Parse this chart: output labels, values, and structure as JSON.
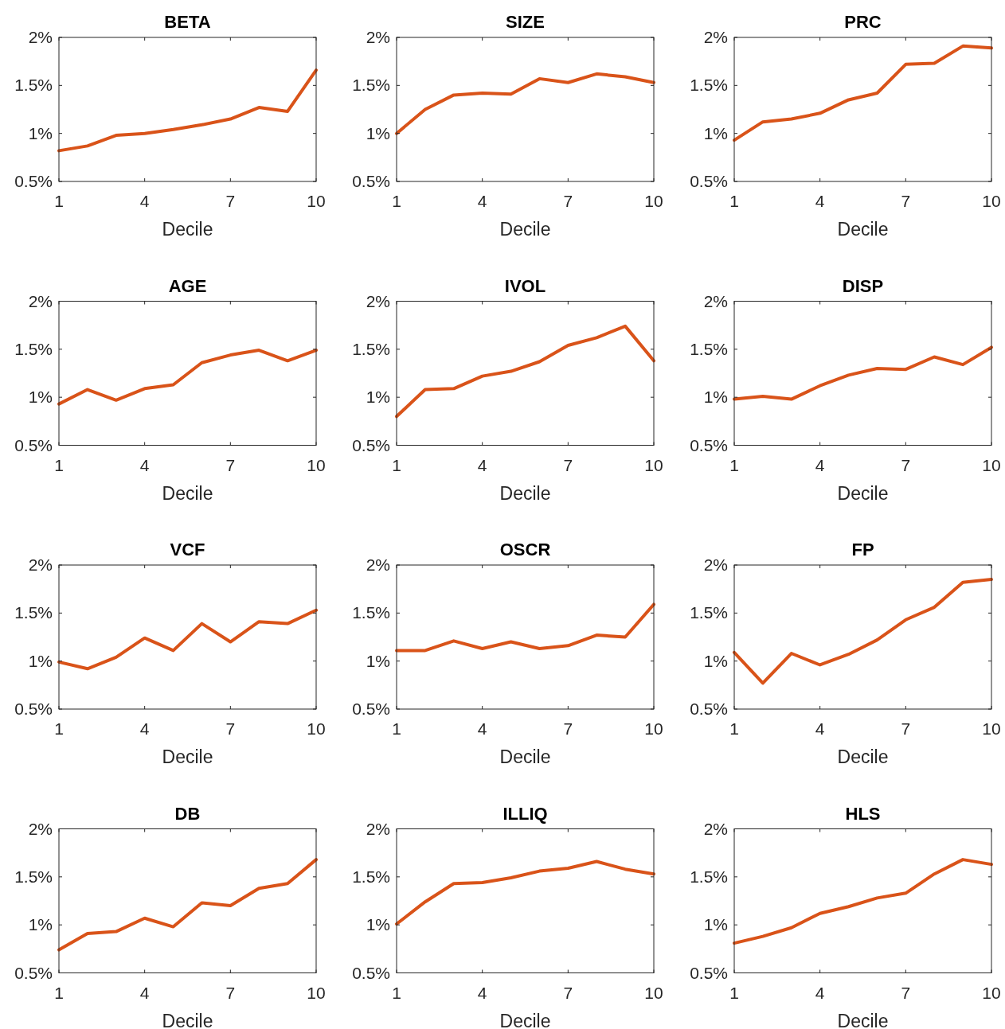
{
  "chart_data": [
    {
      "type": "line",
      "title": "BETA",
      "xlabel": "Decile",
      "x": [
        1,
        2,
        3,
        4,
        5,
        6,
        7,
        8,
        9,
        10
      ],
      "values": [
        0.82,
        0.87,
        0.98,
        1.0,
        1.04,
        1.09,
        1.15,
        1.27,
        1.23,
        1.66
      ],
      "color": "#d95319",
      "xlim": [
        1,
        10
      ],
      "xticks": [
        1,
        4,
        7,
        10
      ],
      "ylim": [
        0.5,
        2
      ],
      "yticks": [
        {
          "value": 0.5,
          "label": "0.5%"
        },
        {
          "value": 1,
          "label": "1%"
        },
        {
          "value": 1.5,
          "label": "1.5%"
        },
        {
          "value": 2,
          "label": "2%"
        }
      ]
    },
    {
      "type": "line",
      "title": "SIZE",
      "xlabel": "Decile",
      "x": [
        1,
        2,
        3,
        4,
        5,
        6,
        7,
        8,
        9,
        10
      ],
      "values": [
        1.0,
        1.25,
        1.4,
        1.42,
        1.41,
        1.57,
        1.53,
        1.62,
        1.59,
        1.53
      ],
      "color": "#d95319",
      "xlim": [
        1,
        10
      ],
      "xticks": [
        1,
        4,
        7,
        10
      ],
      "ylim": [
        0.5,
        2
      ],
      "yticks": [
        {
          "value": 0.5,
          "label": "0.5%"
        },
        {
          "value": 1,
          "label": "1%"
        },
        {
          "value": 1.5,
          "label": "1.5%"
        },
        {
          "value": 2,
          "label": "2%"
        }
      ]
    },
    {
      "type": "line",
      "title": "PRC",
      "xlabel": "Decile",
      "x": [
        1,
        2,
        3,
        4,
        5,
        6,
        7,
        8,
        9,
        10
      ],
      "values": [
        0.93,
        1.12,
        1.15,
        1.21,
        1.35,
        1.42,
        1.72,
        1.73,
        1.91,
        1.89
      ],
      "color": "#d95319",
      "xlim": [
        1,
        10
      ],
      "xticks": [
        1,
        4,
        7,
        10
      ],
      "ylim": [
        0.5,
        2
      ],
      "yticks": [
        {
          "value": 0.5,
          "label": "0.5%"
        },
        {
          "value": 1,
          "label": "1%"
        },
        {
          "value": 1.5,
          "label": "1.5%"
        },
        {
          "value": 2,
          "label": "2%"
        }
      ]
    },
    {
      "type": "line",
      "title": "AGE",
      "xlabel": "Decile",
      "x": [
        1,
        2,
        3,
        4,
        5,
        6,
        7,
        8,
        9,
        10
      ],
      "values": [
        0.93,
        1.08,
        0.97,
        1.09,
        1.13,
        1.36,
        1.44,
        1.49,
        1.38,
        1.49
      ],
      "color": "#d95319",
      "xlim": [
        1,
        10
      ],
      "xticks": [
        1,
        4,
        7,
        10
      ],
      "ylim": [
        0.5,
        2
      ],
      "yticks": [
        {
          "value": 0.5,
          "label": "0.5%"
        },
        {
          "value": 1,
          "label": "1%"
        },
        {
          "value": 1.5,
          "label": "1.5%"
        },
        {
          "value": 2,
          "label": "2%"
        }
      ]
    },
    {
      "type": "line",
      "title": "IVOL",
      "xlabel": "Decile",
      "x": [
        1,
        2,
        3,
        4,
        5,
        6,
        7,
        8,
        9,
        10
      ],
      "values": [
        0.8,
        1.08,
        1.09,
        1.22,
        1.27,
        1.37,
        1.54,
        1.62,
        1.74,
        1.38
      ],
      "color": "#d95319",
      "xlim": [
        1,
        10
      ],
      "xticks": [
        1,
        4,
        7,
        10
      ],
      "ylim": [
        0.5,
        2
      ],
      "yticks": [
        {
          "value": 0.5,
          "label": "0.5%"
        },
        {
          "value": 1,
          "label": "1%"
        },
        {
          "value": 1.5,
          "label": "1.5%"
        },
        {
          "value": 2,
          "label": "2%"
        }
      ]
    },
    {
      "type": "line",
      "title": "DISP",
      "xlabel": "Decile",
      "x": [
        1,
        2,
        3,
        4,
        5,
        6,
        7,
        8,
        9,
        10
      ],
      "values": [
        0.98,
        1.01,
        0.98,
        1.12,
        1.23,
        1.3,
        1.29,
        1.42,
        1.34,
        1.52
      ],
      "color": "#d95319",
      "xlim": [
        1,
        10
      ],
      "xticks": [
        1,
        4,
        7,
        10
      ],
      "ylim": [
        0.5,
        2
      ],
      "yticks": [
        {
          "value": 0.5,
          "label": "0.5%"
        },
        {
          "value": 1,
          "label": "1%"
        },
        {
          "value": 1.5,
          "label": "1.5%"
        },
        {
          "value": 2,
          "label": "2%"
        }
      ]
    },
    {
      "type": "line",
      "title": "VCF",
      "xlabel": "Decile",
      "x": [
        1,
        2,
        3,
        4,
        5,
        6,
        7,
        8,
        9,
        10
      ],
      "values": [
        0.99,
        0.92,
        1.04,
        1.24,
        1.11,
        1.39,
        1.2,
        1.41,
        1.39,
        1.53
      ],
      "color": "#d95319",
      "xlim": [
        1,
        10
      ],
      "xticks": [
        1,
        4,
        7,
        10
      ],
      "ylim": [
        0.5,
        2
      ],
      "yticks": [
        {
          "value": 0.5,
          "label": "0.5%"
        },
        {
          "value": 1,
          "label": "1%"
        },
        {
          "value": 1.5,
          "label": "1.5%"
        },
        {
          "value": 2,
          "label": "2%"
        }
      ]
    },
    {
      "type": "line",
      "title": "OSCR",
      "xlabel": "Decile",
      "x": [
        1,
        2,
        3,
        4,
        5,
        6,
        7,
        8,
        9,
        10
      ],
      "values": [
        1.11,
        1.11,
        1.21,
        1.13,
        1.2,
        1.13,
        1.16,
        1.27,
        1.25,
        1.59
      ],
      "color": "#d95319",
      "xlim": [
        1,
        10
      ],
      "xticks": [
        1,
        4,
        7,
        10
      ],
      "ylim": [
        0.5,
        2
      ],
      "yticks": [
        {
          "value": 0.5,
          "label": "0.5%"
        },
        {
          "value": 1,
          "label": "1%"
        },
        {
          "value": 1.5,
          "label": "1.5%"
        },
        {
          "value": 2,
          "label": "2%"
        }
      ]
    },
    {
      "type": "line",
      "title": "FP",
      "xlabel": "Decile",
      "x": [
        1,
        2,
        3,
        4,
        5,
        6,
        7,
        8,
        9,
        10
      ],
      "values": [
        1.09,
        0.77,
        1.08,
        0.96,
        1.07,
        1.22,
        1.43,
        1.56,
        1.82,
        1.85
      ],
      "color": "#d95319",
      "xlim": [
        1,
        10
      ],
      "xticks": [
        1,
        4,
        7,
        10
      ],
      "ylim": [
        0.5,
        2
      ],
      "yticks": [
        {
          "value": 0.5,
          "label": "0.5%"
        },
        {
          "value": 1,
          "label": "1%"
        },
        {
          "value": 1.5,
          "label": "1.5%"
        },
        {
          "value": 2,
          "label": "2%"
        }
      ]
    },
    {
      "type": "line",
      "title": "DB",
      "xlabel": "Decile",
      "x": [
        1,
        2,
        3,
        4,
        5,
        6,
        7,
        8,
        9,
        10
      ],
      "values": [
        0.74,
        0.91,
        0.93,
        1.07,
        0.98,
        1.23,
        1.2,
        1.38,
        1.43,
        1.68
      ],
      "color": "#d95319",
      "xlim": [
        1,
        10
      ],
      "xticks": [
        1,
        4,
        7,
        10
      ],
      "ylim": [
        0.5,
        2
      ],
      "yticks": [
        {
          "value": 0.5,
          "label": "0.5%"
        },
        {
          "value": 1,
          "label": "1%"
        },
        {
          "value": 1.5,
          "label": "1.5%"
        },
        {
          "value": 2,
          "label": "2%"
        }
      ]
    },
    {
      "type": "line",
      "title": "ILLIQ",
      "xlabel": "Decile",
      "x": [
        1,
        2,
        3,
        4,
        5,
        6,
        7,
        8,
        9,
        10
      ],
      "values": [
        1.01,
        1.24,
        1.43,
        1.44,
        1.49,
        1.56,
        1.59,
        1.66,
        1.58,
        1.53
      ],
      "color": "#d95319",
      "xlim": [
        1,
        10
      ],
      "xticks": [
        1,
        4,
        7,
        10
      ],
      "ylim": [
        0.5,
        2
      ],
      "yticks": [
        {
          "value": 0.5,
          "label": "0.5%"
        },
        {
          "value": 1,
          "label": "1%"
        },
        {
          "value": 1.5,
          "label": "1.5%"
        },
        {
          "value": 2,
          "label": "2%"
        }
      ]
    },
    {
      "type": "line",
      "title": "HLS",
      "xlabel": "Decile",
      "x": [
        1,
        2,
        3,
        4,
        5,
        6,
        7,
        8,
        9,
        10
      ],
      "values": [
        0.81,
        0.88,
        0.97,
        1.12,
        1.19,
        1.28,
        1.33,
        1.53,
        1.68,
        1.63
      ],
      "color": "#d95319",
      "xlim": [
        1,
        10
      ],
      "xticks": [
        1,
        4,
        7,
        10
      ],
      "ylim": [
        0.5,
        2
      ],
      "yticks": [
        {
          "value": 0.5,
          "label": "0.5%"
        },
        {
          "value": 1,
          "label": "1%"
        },
        {
          "value": 1.5,
          "label": "1.5%"
        },
        {
          "value": 2,
          "label": "2%"
        }
      ]
    }
  ]
}
